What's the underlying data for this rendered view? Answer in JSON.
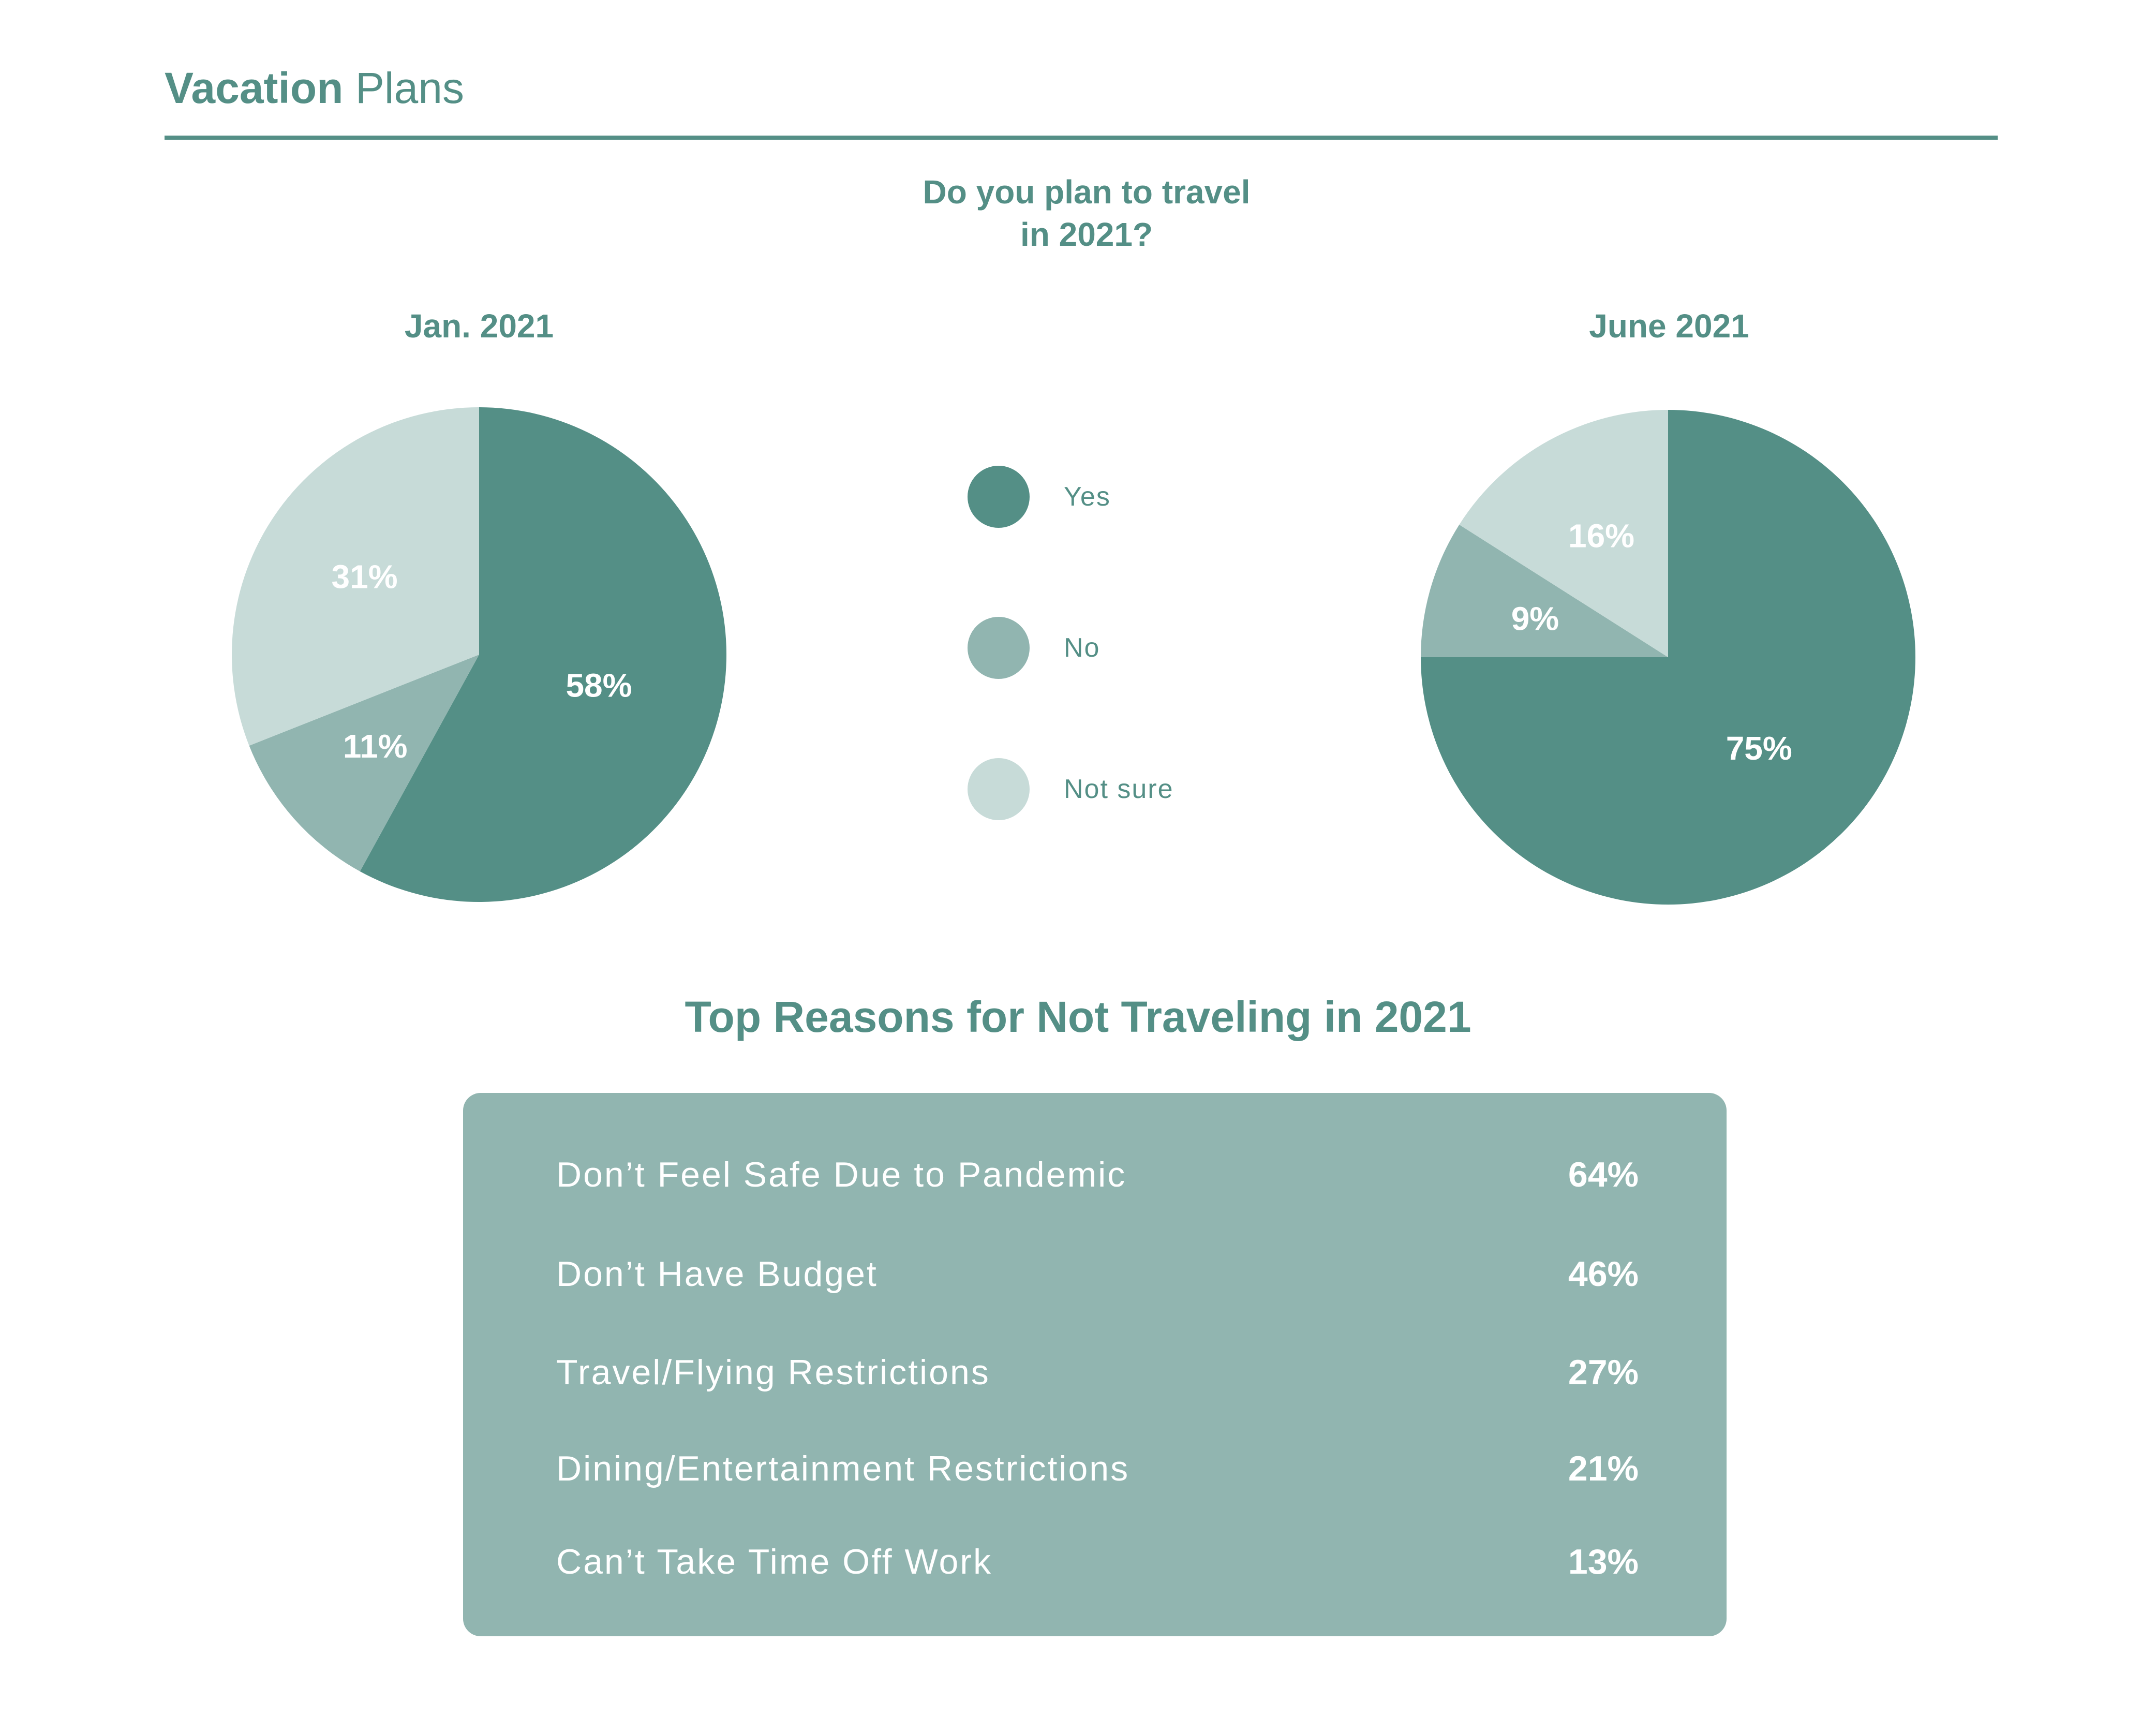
{
  "header": {
    "title_bold": "Vacation",
    "title_light": "Plans"
  },
  "colors": {
    "yes": "#548f86",
    "no": "#91b5b0",
    "not_sure": "#c7dbd8",
    "panel": "#91b5b0",
    "text": "#548f86"
  },
  "question": {
    "line1": "Do you plan to travel",
    "line2": "in 2021?"
  },
  "legend": [
    {
      "label": "Yes",
      "color": "#548f86"
    },
    {
      "label": "No",
      "color": "#91b5b0"
    },
    {
      "label": "Not sure",
      "color": "#c7dbd8"
    }
  ],
  "reasons_title": "Top Reasons for Not Traveling in 2021",
  "chart_data": [
    {
      "type": "pie",
      "title": "Jan. 2021",
      "categories": [
        "Yes",
        "No",
        "Not sure"
      ],
      "values": [
        58,
        11,
        31
      ],
      "labels": [
        "58%",
        "11%",
        "31%"
      ],
      "colors": [
        "#548f86",
        "#91b5b0",
        "#c7dbd8"
      ]
    },
    {
      "type": "pie",
      "title": "June 2021",
      "categories": [
        "Yes",
        "No",
        "Not sure"
      ],
      "values": [
        75,
        9,
        16
      ],
      "labels": [
        "75%",
        "9%",
        "16%"
      ],
      "colors": [
        "#548f86",
        "#91b5b0",
        "#c7dbd8"
      ]
    },
    {
      "type": "table",
      "title": "Top Reasons for Not Traveling in 2021",
      "categories": [
        "Don’t Feel Safe Due to Pandemic",
        "Don’t Have Budget",
        "Travel/Flying Restrictions",
        "Dining/Entertainment Restrictions",
        "Can’t Take Time Off Work"
      ],
      "values": [
        64,
        46,
        27,
        21,
        13
      ],
      "labels": [
        "64%",
        "46%",
        "27%",
        "21%",
        "13%"
      ]
    }
  ]
}
